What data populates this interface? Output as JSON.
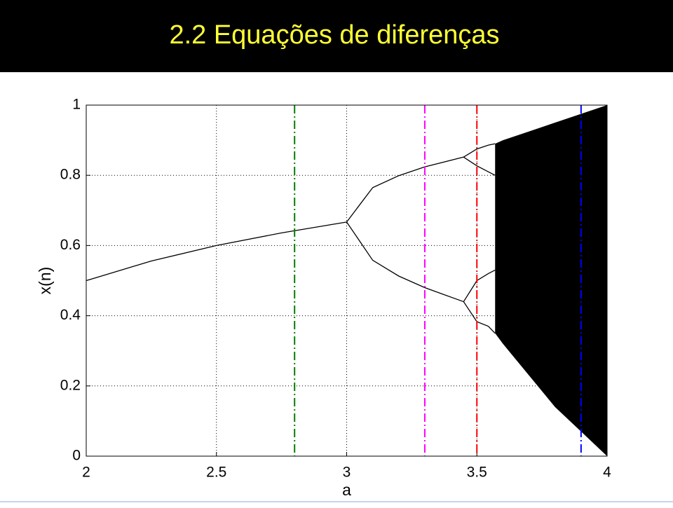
{
  "header": {
    "title": "2.2 Equações de diferenças"
  },
  "chart_data": {
    "type": "line",
    "xlabel": "a",
    "ylabel": "x(n)",
    "xlim": [
      2,
      4
    ],
    "xticks": [
      2,
      2.5,
      3,
      3.5,
      4
    ],
    "ylim": [
      0,
      1
    ],
    "yticks": [
      0,
      0.2,
      0.4,
      0.6,
      0.8,
      1
    ],
    "grid": true,
    "series": [
      {
        "type": "line",
        "color": "#000000",
        "x": [
          2,
          2.25,
          2.5,
          2.75,
          3
        ],
        "values": [
          0.5,
          0.556,
          0.6,
          0.636,
          0.667
        ]
      },
      {
        "type": "line",
        "color": "#000000",
        "x": [
          3,
          3.1,
          3.2,
          3.3,
          3.449
        ],
        "values": [
          0.667,
          0.765,
          0.799,
          0.824,
          0.852
        ]
      },
      {
        "type": "line",
        "color": "#000000",
        "x": [
          3,
          3.1,
          3.2,
          3.3,
          3.449
        ],
        "values": [
          0.667,
          0.558,
          0.513,
          0.48,
          0.44
        ]
      },
      {
        "type": "line",
        "color": "#000000",
        "x": [
          3.449,
          3.5,
          3.544,
          3.57
        ],
        "values": [
          0.852,
          0.875,
          0.886,
          0.89
        ]
      },
      {
        "type": "line",
        "color": "#000000",
        "x": [
          3.449,
          3.5,
          3.544,
          3.57
        ],
        "values": [
          0.852,
          0.827,
          0.81,
          0.8
        ]
      },
      {
        "type": "line",
        "color": "#000000",
        "x": [
          3.449,
          3.5,
          3.544,
          3.57
        ],
        "values": [
          0.44,
          0.5,
          0.52,
          0.53
        ]
      },
      {
        "type": "line",
        "color": "#000000",
        "x": [
          3.449,
          3.5,
          3.544,
          3.57
        ],
        "values": [
          0.44,
          0.383,
          0.37,
          0.35
        ]
      },
      {
        "type": "area",
        "color": "#000000",
        "x": [
          3.57,
          3.6,
          3.7,
          3.8,
          3.9,
          4
        ],
        "values": [
          0.89,
          0.9,
          0.925,
          0.95,
          0.975,
          1
        ],
        "lower": [
          0.35,
          0.32,
          0.23,
          0.14,
          0.07,
          0
        ]
      }
    ],
    "markers": [
      {
        "x": 2.8,
        "color": "#008000"
      },
      {
        "x": 3.3,
        "color": "#ff00ff"
      },
      {
        "x": 3.5,
        "color": "#ff0000"
      },
      {
        "x": 3.9,
        "color": "#0000ff"
      }
    ]
  }
}
